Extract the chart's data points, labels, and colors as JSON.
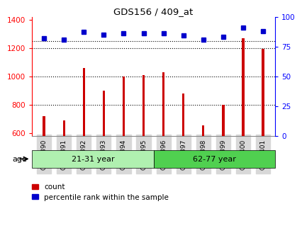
{
  "title": "GDS156 / 409_at",
  "samples": [
    "GSM2390",
    "GSM2391",
    "GSM2392",
    "GSM2393",
    "GSM2394",
    "GSM2395",
    "GSM2396",
    "GSM2397",
    "GSM2398",
    "GSM2399",
    "GSM2400",
    "GSM2401"
  ],
  "counts": [
    720,
    690,
    1060,
    900,
    1000,
    1010,
    1030,
    880,
    655,
    800,
    1270,
    1195
  ],
  "percentiles": [
    82,
    81,
    87,
    85,
    86,
    86,
    86,
    84,
    81,
    83,
    91,
    88
  ],
  "groups": [
    {
      "label": "21-31 year",
      "start": 0,
      "end": 6,
      "color": "#b0f0b0"
    },
    {
      "label": "62-77 year",
      "start": 6,
      "end": 12,
      "color": "#50d050"
    }
  ],
  "ylim_left": [
    580,
    1420
  ],
  "ylim_right": [
    0,
    100
  ],
  "yticks_left": [
    600,
    800,
    1000,
    1200,
    1400
  ],
  "yticks_right": [
    0,
    25,
    50,
    75,
    100
  ],
  "bar_color": "#cc0000",
  "dot_color": "#0000cc",
  "bar_width": 0.12,
  "age_label": "age",
  "legend_count_label": "count",
  "legend_percentile_label": "percentile rank within the sample",
  "background_color": "#ffffff",
  "xticklabel_bg": "#d8d8d8"
}
